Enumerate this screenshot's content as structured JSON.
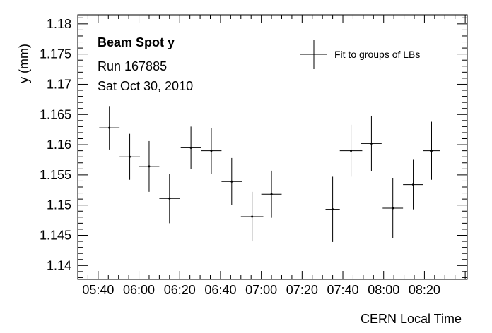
{
  "chart_data": {
    "type": "scatter",
    "title": "Beam Spot y",
    "annotations": [
      "Run 167885",
      "Sat Oct 30, 2010"
    ],
    "xlabel": "CERN Local Time",
    "ylabel": "y (mm)",
    "x_tick_labels": [
      "05:40",
      "06:00",
      "06:20",
      "06:40",
      "07:00",
      "07:20",
      "07:40",
      "08:00",
      "08:20"
    ],
    "x_tick_minutes": [
      340,
      360,
      380,
      400,
      420,
      440,
      460,
      480,
      500
    ],
    "y_tick_labels": [
      "1.14",
      "1.145",
      "1.15",
      "1.155",
      "1.16",
      "1.165",
      "1.17",
      "1.175",
      "1.18"
    ],
    "y_ticks": [
      1.14,
      1.145,
      1.15,
      1.155,
      1.16,
      1.165,
      1.17,
      1.175,
      1.18
    ],
    "xlim_minutes": [
      330,
      521
    ],
    "ylim": [
      1.1377,
      1.1815
    ],
    "legend": {
      "entries": [
        "Fit to groups of LBs"
      ],
      "placement": "top-right"
    },
    "series": [
      {
        "name": "Fit to groups of LBs",
        "points": [
          {
            "x": 345.5,
            "xerr": 5.0,
            "y": 1.1628,
            "yerr": 0.0036
          },
          {
            "x": 355.5,
            "xerr": 5.0,
            "y": 1.158,
            "yerr": 0.0038
          },
          {
            "x": 365.0,
            "xerr": 5.0,
            "y": 1.1564,
            "yerr": 0.0042
          },
          {
            "x": 375.0,
            "xerr": 5.0,
            "y": 1.1511,
            "yerr": 0.0041
          },
          {
            "x": 385.5,
            "xerr": 5.0,
            "y": 1.1595,
            "yerr": 0.0035
          },
          {
            "x": 395.5,
            "xerr": 5.0,
            "y": 1.159,
            "yerr": 0.0038
          },
          {
            "x": 405.5,
            "xerr": 5.0,
            "y": 1.1539,
            "yerr": 0.0039
          },
          {
            "x": 415.5,
            "xerr": 5.5,
            "y": 1.1481,
            "yerr": 0.0041
          },
          {
            "x": 425.0,
            "xerr": 5.0,
            "y": 1.1518,
            "yerr": 0.0039
          },
          {
            "x": 455.0,
            "xerr": 3.5,
            "y": 1.1493,
            "yerr": 0.0054
          },
          {
            "x": 464.0,
            "xerr": 5.5,
            "y": 1.159,
            "yerr": 0.0043
          },
          {
            "x": 474.0,
            "xerr": 5.0,
            "y": 1.1602,
            "yerr": 0.0046
          },
          {
            "x": 484.5,
            "xerr": 5.0,
            "y": 1.1495,
            "yerr": 0.005
          },
          {
            "x": 494.5,
            "xerr": 5.0,
            "y": 1.1534,
            "yerr": 0.0041
          },
          {
            "x": 503.5,
            "xerr": 4.0,
            "y": 1.159,
            "yerr": 0.0048
          }
        ]
      }
    ]
  }
}
